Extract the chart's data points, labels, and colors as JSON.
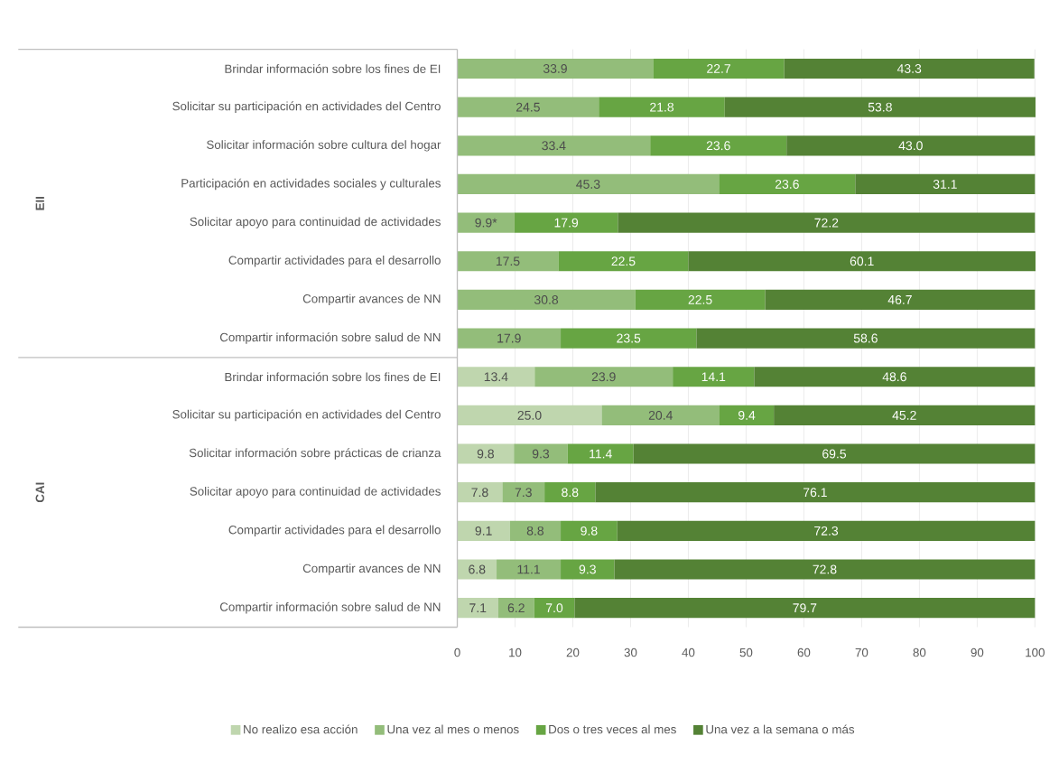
{
  "chart_data": {
    "type": "bar",
    "orientation": "horizontal",
    "stacked": true,
    "categories": [
      "Brindar información sobre los fines de EI",
      "Solicitar su participación en actividades del Centro",
      "Solicitar información sobre cultura del hogar",
      "Participación en actividades sociales y culturales",
      "Solicitar apoyo para continuidad de actividades",
      "Compartir actividades para el desarrollo",
      "Compartir avances de NN",
      "Compartir información sobre salud de NN",
      "Brindar información sobre los fines de EI",
      "Solicitar su participación en actividades del Centro",
      "Solicitar información sobre prácticas de crianza",
      "Solicitar apoyo para continuidad de actividades",
      "Compartir actividades para el desarrollo",
      "Compartir avances de NN",
      "Compartir información sobre salud de NN"
    ],
    "series": [
      {
        "name": "No realizo esa acción",
        "color": "#bfd6ae",
        "values": [
          null,
          null,
          null,
          null,
          null,
          null,
          null,
          null,
          13.4,
          25.0,
          9.8,
          7.8,
          9.1,
          6.8,
          7.1
        ],
        "value_labels": [
          null,
          null,
          null,
          null,
          null,
          null,
          null,
          null,
          "13.4",
          "25.0",
          "9.8",
          "7.8",
          "9.1",
          "6.8",
          "7.1"
        ]
      },
      {
        "name": "Una vez al mes o menos",
        "color": "#93bd7a",
        "values": [
          33.9,
          24.5,
          33.4,
          45.3,
          9.9,
          17.5,
          30.8,
          17.9,
          23.9,
          20.4,
          9.3,
          7.3,
          8.8,
          11.1,
          6.2
        ],
        "value_labels": [
          "33.9",
          "24.5",
          "33.4",
          "45.3",
          "9.9*",
          "17.5",
          "30.8",
          "17.9",
          "23.9",
          "20.4",
          "9.3",
          "7.3",
          "8.8",
          "11.1",
          "6.2"
        ]
      },
      {
        "name": "Dos o tres veces al mes",
        "color": "#67a543",
        "values": [
          22.7,
          21.8,
          23.6,
          23.6,
          17.9,
          22.5,
          22.5,
          23.5,
          14.1,
          9.4,
          11.4,
          8.8,
          9.8,
          9.3,
          7.0
        ],
        "value_labels": [
          "22.7",
          "21.8",
          "23.6",
          "23.6",
          "17.9",
          "22.5",
          "22.5",
          "23.5",
          "14.1",
          "9.4",
          "11.4",
          "8.8",
          "9.8",
          "9.3",
          "7.0"
        ]
      },
      {
        "name": "Una vez a la semana o más",
        "color": "#548235",
        "values": [
          43.3,
          53.8,
          43.0,
          31.1,
          72.2,
          60.1,
          46.7,
          58.6,
          48.6,
          45.2,
          69.5,
          76.1,
          72.3,
          72.8,
          79.7
        ],
        "value_labels": [
          "43.3",
          "53.8",
          "43.0",
          "31.1",
          "72.2",
          "60.1",
          "46.7",
          "58.6",
          "48.6",
          "45.2",
          "69.5",
          "76.1",
          "72.3",
          "72.8",
          "79.7"
        ]
      }
    ],
    "xlim": [
      0,
      100
    ],
    "xticks": [
      0,
      10,
      20,
      30,
      40,
      50,
      60,
      70,
      80,
      90,
      100
    ],
    "grid": "x",
    "legend": "bottom",
    "annotations": [
      "EII",
      "CAI"
    ]
  }
}
